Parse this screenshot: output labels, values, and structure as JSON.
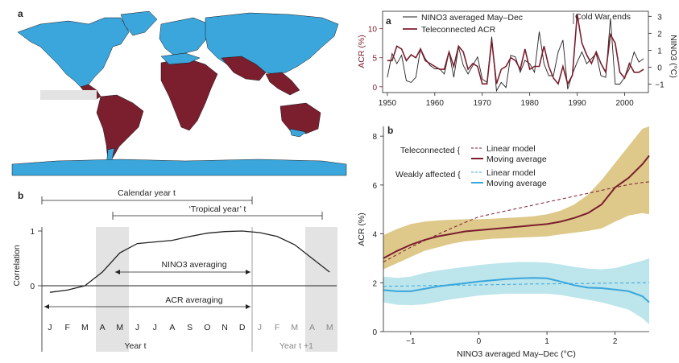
{
  "colors": {
    "ocean_weak": "#3aa6dc",
    "teleconnected": "#7b1e2e",
    "gold_band": "#d6bc6e",
    "cyan_band": "#a6dce6",
    "grey_band": "#e3e3e3",
    "dark_line": "#222222"
  },
  "map_panel": {
    "label": "a",
    "description_regions": [
      "teleconnected",
      "weakly affected"
    ]
  },
  "timeline_panel": {
    "label": "b",
    "calendar_year_label": "Calendar year t",
    "tropical_year_label": "‘Tropical year’ t",
    "nino3_averaging_label": "NINO3 averaging",
    "acr_averaging_label": "ACR averaging",
    "ylabel": "Correlation",
    "yticks": [
      "1",
      "0"
    ],
    "months": [
      "J",
      "F",
      "M",
      "A",
      "M",
      "J",
      "J",
      "A",
      "S",
      "O",
      "N",
      "D",
      "J",
      "F",
      "M",
      "A",
      "M"
    ],
    "year_label": "Year t",
    "next_year_label": "Year t +1",
    "correlation_curve": [
      -0.12,
      -0.08,
      0.0,
      0.25,
      0.6,
      0.77,
      0.8,
      0.83,
      0.9,
      0.96,
      0.99,
      1.0,
      0.97,
      0.9,
      0.75,
      0.5,
      0.25
    ]
  },
  "chart_data": [
    {
      "type": "line",
      "panel": "a",
      "title": "",
      "legend": [
        "NINO3 averaged May–Dec",
        "Teleconnected ACR"
      ],
      "annotation": "Cold War ends",
      "xlabel": "",
      "ylabel_left": "ACR (%)",
      "ylabel_right": "NINO3 (°C)",
      "xlim": [
        1949,
        2005
      ],
      "ylim_left": [
        -1,
        13
      ],
      "ylim_right": [
        -1.5,
        3.3
      ],
      "xticks": [
        "1950",
        "1960",
        "1970",
        "1980",
        "1990",
        "2000"
      ],
      "yticks_left": [
        "0",
        "5",
        "10"
      ],
      "yticks_right": [
        "−1",
        "0",
        "1",
        "2",
        "3"
      ],
      "x": [
        1950,
        1951,
        1952,
        1953,
        1954,
        1955,
        1956,
        1957,
        1958,
        1959,
        1960,
        1961,
        1962,
        1963,
        1964,
        1965,
        1966,
        1967,
        1968,
        1969,
        1970,
        1971,
        1972,
        1973,
        1974,
        1975,
        1976,
        1977,
        1978,
        1979,
        1980,
        1981,
        1982,
        1983,
        1984,
        1985,
        1986,
        1987,
        1988,
        1989,
        1990,
        1991,
        1992,
        1993,
        1994,
        1995,
        1996,
        1997,
        1998,
        1999,
        2000,
        2001,
        2002,
        2003,
        2004
      ],
      "series": [
        {
          "name": "NINO3 averaged May–Dec",
          "axis": "right",
          "values": [
            -0.6,
            0.8,
            0.2,
            0.7,
            -0.8,
            -0.9,
            -0.6,
            1.1,
            0.5,
            0.1,
            -0.1,
            -0.1,
            -0.4,
            0.9,
            -0.6,
            1.2,
            0.1,
            -0.4,
            0.1,
            0.6,
            -0.7,
            -0.9,
            1.8,
            -1.4,
            -0.9,
            -1.2,
            0.7,
            0.6,
            -0.3,
            0.4,
            0.2,
            -0.3,
            2.1,
            0.2,
            -0.5,
            -0.5,
            0.9,
            1.6,
            -1.3,
            -0.4,
            0.3,
            0.9,
            0.2,
            0.5,
            0.8,
            -0.5,
            -0.6,
            2.9,
            -1.0,
            -1.0,
            -0.6,
            -0.1,
            0.9,
            0.3,
            0.5
          ]
        },
        {
          "name": "Teleconnected ACR",
          "axis": "left",
          "values": [
            4.5,
            4.5,
            7.0,
            6.5,
            4.5,
            5.5,
            5.0,
            6.5,
            4.5,
            4.0,
            3.5,
            3.0,
            3.0,
            6.0,
            3.5,
            7.0,
            6.0,
            3.0,
            4.0,
            3.5,
            0.5,
            0.5,
            8.0,
            0.5,
            3.0,
            3.5,
            5.0,
            4.5,
            3.0,
            6.5,
            3.0,
            3.5,
            3.5,
            7.0,
            3.5,
            1.5,
            0.5,
            3.5,
            0.5,
            2.0,
            12.5,
            7.5,
            5.5,
            4.0,
            6.0,
            4.0,
            2.5,
            9.0,
            7.5,
            2.5,
            1.5,
            4.0,
            2.5,
            2.5,
            3.0
          ]
        }
      ]
    },
    {
      "type": "line",
      "panel": "b",
      "title": "",
      "xlabel": "NINO3 averaged May–Dec (°C)",
      "ylabel": "ACR (%)",
      "xlim": [
        -1.4,
        2.5
      ],
      "ylim": [
        0,
        8.4
      ],
      "xticks": [
        "−1",
        "0",
        "1",
        "2"
      ],
      "yticks": [
        "0",
        "2",
        "4",
        "6",
        "8"
      ],
      "legend_groups": [
        "Teleconnected {",
        "Weakly affected {"
      ],
      "legend_entries": [
        "Linear model",
        "Moving average",
        "Linear model",
        "Moving average"
      ],
      "x": [
        -1.4,
        -1.2,
        -1.0,
        -0.8,
        -0.6,
        -0.4,
        -0.2,
        0.0,
        0.2,
        0.4,
        0.6,
        0.8,
        1.0,
        1.2,
        1.4,
        1.6,
        1.8,
        2.0,
        2.2,
        2.4,
        2.5
      ],
      "series": [
        {
          "name": "Teleconnected moving average",
          "values": [
            3.0,
            3.3,
            3.55,
            3.75,
            3.9,
            4.0,
            4.1,
            4.15,
            4.2,
            4.25,
            4.3,
            4.35,
            4.4,
            4.5,
            4.65,
            4.85,
            5.2,
            5.9,
            6.3,
            6.85,
            7.2
          ]
        },
        {
          "name": "Teleconnected band upper",
          "values": [
            3.95,
            4.2,
            4.4,
            4.5,
            4.55,
            4.58,
            4.6,
            4.6,
            4.62,
            4.65,
            4.68,
            4.72,
            4.8,
            4.95,
            5.2,
            5.6,
            6.2,
            6.9,
            7.6,
            8.3,
            8.4
          ]
        },
        {
          "name": "Teleconnected band lower",
          "values": [
            2.55,
            2.8,
            3.05,
            3.3,
            3.45,
            3.6,
            3.7,
            3.75,
            3.8,
            3.82,
            3.85,
            3.87,
            3.9,
            3.98,
            4.05,
            4.12,
            4.22,
            4.5,
            4.75,
            4.85,
            4.8
          ]
        },
        {
          "name": "Teleconnected linear model",
          "dashed": true,
          "values": [
            2.85,
            3.15,
            3.45,
            3.72,
            3.98,
            4.23,
            4.47,
            4.7,
            4.82,
            4.94,
            5.06,
            5.18,
            5.3,
            5.42,
            5.54,
            5.66,
            5.78,
            5.9,
            6.02,
            6.1,
            6.13
          ]
        },
        {
          "name": "Weakly affected moving average",
          "values": [
            1.7,
            1.65,
            1.65,
            1.75,
            1.85,
            1.92,
            1.98,
            2.05,
            2.1,
            2.15,
            2.18,
            2.2,
            2.18,
            2.05,
            1.9,
            1.8,
            1.78,
            1.72,
            1.65,
            1.45,
            1.2
          ]
        },
        {
          "name": "Weakly affected band upper",
          "values": [
            2.25,
            2.2,
            2.25,
            2.4,
            2.5,
            2.58,
            2.65,
            2.72,
            2.78,
            2.82,
            2.85,
            2.85,
            2.82,
            2.75,
            2.65,
            2.58,
            2.55,
            2.6,
            2.75,
            2.9,
            3.0
          ]
        },
        {
          "name": "Weakly affected band lower",
          "values": [
            1.2,
            1.1,
            1.08,
            1.12,
            1.22,
            1.32,
            1.4,
            1.48,
            1.52,
            1.55,
            1.55,
            1.55,
            1.55,
            1.5,
            1.4,
            1.3,
            1.2,
            1.05,
            0.9,
            0.55,
            0.3
          ]
        },
        {
          "name": "Weakly affected linear model",
          "dashed": true,
          "values": [
            1.85,
            1.86,
            1.87,
            1.88,
            1.89,
            1.9,
            1.9,
            1.91,
            1.92,
            1.93,
            1.94,
            1.95,
            1.95,
            1.96,
            1.97,
            1.97,
            1.98,
            1.99,
            1.99,
            2.0,
            2.0
          ]
        }
      ]
    }
  ]
}
